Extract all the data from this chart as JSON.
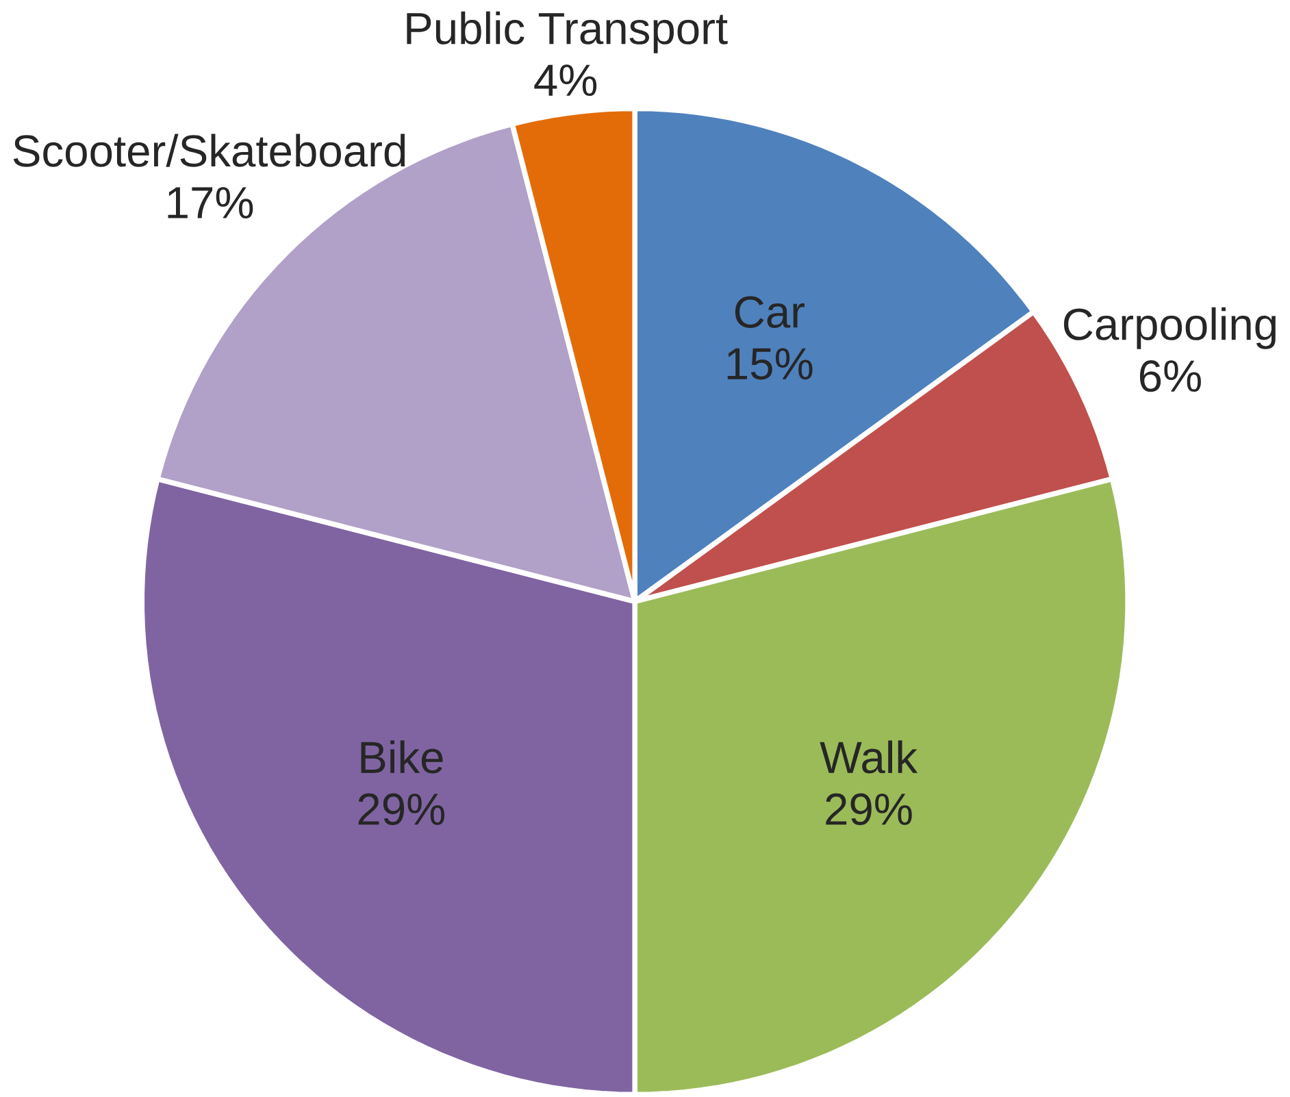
{
  "chart_data": {
    "type": "pie",
    "categories": [
      "Car",
      "Carpooling",
      "Walk",
      "Bike",
      "Scooter/Skateboard",
      "Public Transport"
    ],
    "values": [
      15,
      6,
      29,
      29,
      17,
      4
    ],
    "value_labels": [
      "15%",
      "6%",
      "29%",
      "29%",
      "17%",
      "4%"
    ],
    "colors": [
      "#4f81bd",
      "#c0504d",
      "#9bbb59",
      "#8064a2",
      "#b1a0c7",
      "#e36c09"
    ]
  }
}
